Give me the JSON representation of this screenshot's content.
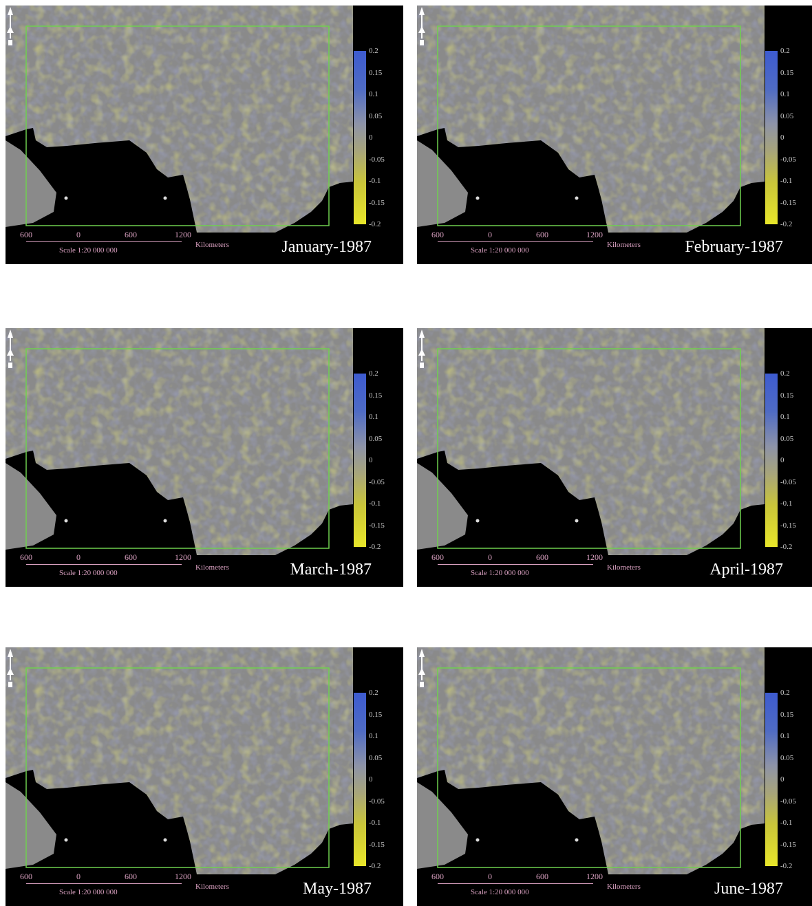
{
  "legend": {
    "ticks": [
      "0.2",
      "0.15",
      "0.1",
      "0.05",
      "0",
      "-0.05",
      "-0.1",
      "-0.15",
      "-0.2"
    ]
  },
  "scale": {
    "ticks": [
      "600",
      "0",
      "600",
      "1200"
    ],
    "label": "Scale 1:20 000 000",
    "unit": "Kilometers"
  },
  "colors": {
    "positive": "#4a63c8",
    "negative": "#d9d62e",
    "neutral": "#8a8a8a",
    "ocean": "#000000",
    "frame": "#6fcf4f"
  },
  "icons": {
    "north_arrow": "north-arrow-icon"
  },
  "panels": [
    {
      "title": "January-1987"
    },
    {
      "title": "February-1987"
    },
    {
      "title": "March-1987"
    },
    {
      "title": "April-1987"
    },
    {
      "title": "May-1987"
    },
    {
      "title": "June-1987"
    }
  ]
}
